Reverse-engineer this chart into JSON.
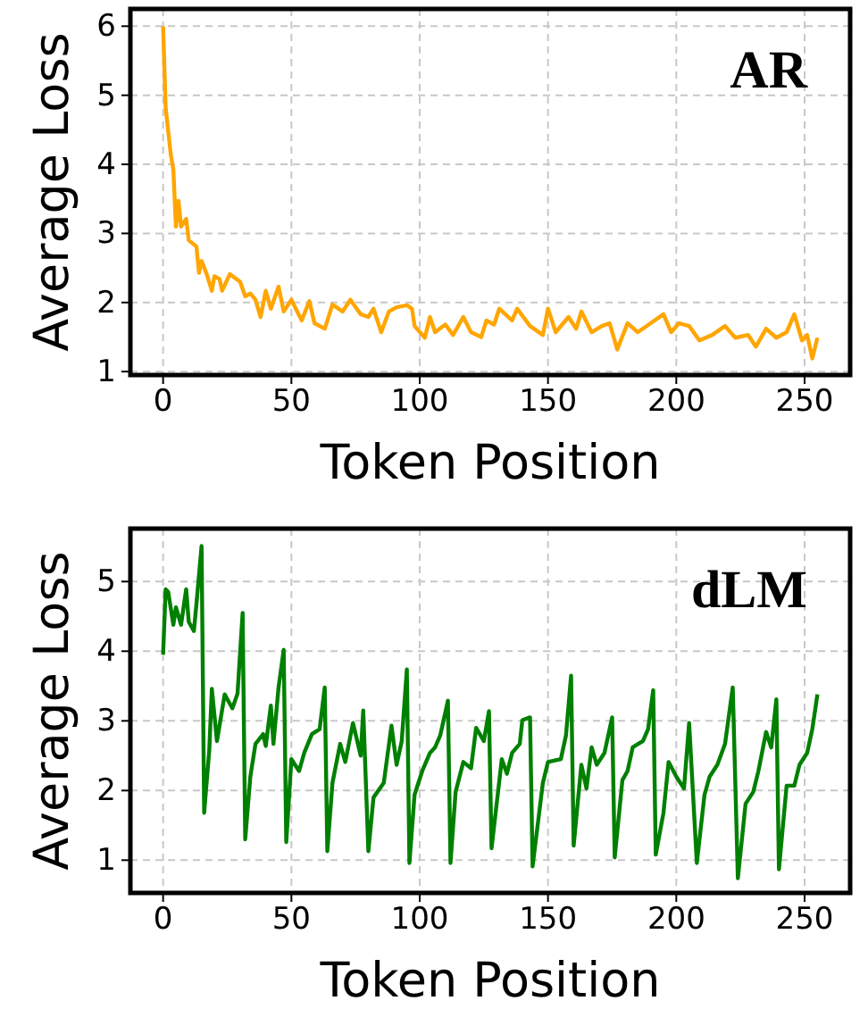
{
  "chart_data": [
    {
      "type": "line",
      "xlabel": "Token Position",
      "ylabel": "Average Loss",
      "annotations": [
        "AR"
      ],
      "grid": true,
      "line_style": "solid",
      "xlim": [
        -12.75,
        267.75
      ],
      "ylim": [
        0.95,
        6.25
      ],
      "xticks": [
        0,
        50,
        100,
        150,
        200,
        250
      ],
      "yticks": [
        1,
        2,
        3,
        4,
        5,
        6
      ],
      "series": [
        {
          "color": "#ffa500",
          "x": [
            0,
            1,
            3,
            4,
            5,
            6,
            7,
            9,
            10,
            13,
            14,
            15,
            17,
            19,
            20,
            22,
            23,
            26,
            30,
            32,
            34,
            36,
            38,
            40,
            42,
            45,
            47,
            50,
            54,
            57,
            59,
            63,
            66,
            70,
            73,
            77,
            80,
            82,
            85,
            88,
            91,
            95,
            97,
            98,
            102,
            104,
            106,
            110,
            113,
            117,
            120,
            124,
            126,
            129,
            131,
            136,
            138,
            143,
            148,
            150,
            153,
            158,
            161,
            163,
            167,
            171,
            174,
            177,
            181,
            185,
            190,
            195,
            198,
            201,
            205,
            209,
            214,
            219,
            223,
            228,
            231,
            235,
            239,
            243,
            246,
            249,
            251,
            253,
            255
          ],
          "values": [
            6.0,
            4.82,
            4.14,
            3.92,
            3.1,
            3.47,
            3.1,
            3.21,
            2.9,
            2.81,
            2.43,
            2.6,
            2.41,
            2.17,
            2.38,
            2.34,
            2.17,
            2.41,
            2.3,
            2.09,
            2.13,
            2.04,
            1.79,
            2.17,
            1.91,
            2.23,
            1.87,
            2.04,
            1.74,
            2.02,
            1.7,
            1.62,
            1.97,
            1.87,
            2.04,
            1.83,
            1.79,
            1.91,
            1.57,
            1.87,
            1.93,
            1.96,
            1.91,
            1.66,
            1.49,
            1.79,
            1.57,
            1.68,
            1.53,
            1.79,
            1.57,
            1.5,
            1.74,
            1.68,
            1.91,
            1.74,
            1.91,
            1.66,
            1.53,
            1.91,
            1.57,
            1.79,
            1.62,
            1.87,
            1.57,
            1.66,
            1.7,
            1.32,
            1.7,
            1.57,
            1.7,
            1.83,
            1.57,
            1.7,
            1.66,
            1.45,
            1.53,
            1.66,
            1.49,
            1.53,
            1.36,
            1.62,
            1.49,
            1.57,
            1.83,
            1.45,
            1.53,
            1.19,
            1.49
          ]
        }
      ]
    },
    {
      "type": "line",
      "xlabel": "Token Position",
      "ylabel": "Average Loss",
      "annotations": [
        "dLM"
      ],
      "grid": true,
      "line_style": "solid",
      "xlim": [
        -12.75,
        267.75
      ],
      "ylim": [
        0.53,
        5.76
      ],
      "xticks": [
        0,
        50,
        100,
        150,
        200,
        250
      ],
      "yticks": [
        1,
        2,
        3,
        4,
        5
      ],
      "series": [
        {
          "color": "#008000",
          "x": [
            0,
            1,
            2,
            4,
            5,
            7,
            9,
            10,
            12,
            13,
            15,
            16,
            18,
            19,
            21,
            24,
            27,
            29,
            31,
            32,
            34,
            36,
            39,
            40,
            42,
            43,
            45,
            47,
            48,
            50,
            53,
            55,
            58,
            61,
            63,
            64,
            66,
            69,
            71,
            74,
            77,
            78,
            80,
            82,
            86,
            89,
            91,
            93,
            95,
            96,
            98,
            101,
            104,
            106,
            108,
            111,
            112,
            114,
            117,
            120,
            122,
            125,
            127,
            128,
            132,
            134,
            136,
            139,
            140,
            143,
            144,
            148,
            150,
            155,
            157,
            159,
            160,
            163,
            165,
            167,
            169,
            172,
            175,
            176,
            179,
            181,
            183,
            187,
            189,
            191,
            192,
            195,
            197,
            200,
            203,
            205,
            208,
            211,
            213,
            216,
            219,
            222,
            224,
            227,
            230,
            232,
            235,
            237,
            239,
            240,
            243,
            246,
            248,
            251,
            253,
            255
          ],
          "values": [
            3.95,
            4.89,
            4.85,
            4.38,
            4.63,
            4.38,
            4.89,
            4.42,
            4.29,
            4.68,
            5.51,
            1.68,
            2.58,
            3.46,
            2.71,
            3.38,
            3.18,
            3.39,
            4.55,
            1.3,
            2.2,
            2.67,
            2.81,
            2.64,
            3.22,
            2.67,
            3.48,
            4.02,
            1.26,
            2.45,
            2.28,
            2.54,
            2.81,
            2.88,
            3.48,
            1.13,
            2.11,
            2.67,
            2.41,
            2.97,
            2.5,
            3.15,
            1.13,
            1.9,
            2.11,
            2.93,
            2.37,
            2.71,
            3.74,
            0.96,
            1.94,
            2.28,
            2.54,
            2.62,
            2.79,
            3.29,
            0.96,
            1.98,
            2.41,
            2.32,
            2.9,
            2.71,
            3.14,
            1.17,
            2.45,
            2.24,
            2.54,
            2.67,
            3.01,
            3.05,
            0.91,
            2.11,
            2.41,
            2.45,
            2.79,
            3.65,
            1.21,
            2.37,
            2.03,
            2.62,
            2.37,
            2.54,
            3.05,
            1.04,
            2.15,
            2.28,
            2.62,
            2.71,
            2.88,
            3.44,
            1.08,
            1.68,
            2.41,
            2.2,
            2.03,
            2.97,
            0.96,
            1.94,
            2.2,
            2.37,
            2.67,
            3.48,
            0.74,
            1.81,
            1.98,
            2.28,
            2.84,
            2.62,
            3.31,
            0.87,
            2.07,
            2.07,
            2.37,
            2.54,
            2.88,
            3.38
          ]
        }
      ]
    }
  ]
}
